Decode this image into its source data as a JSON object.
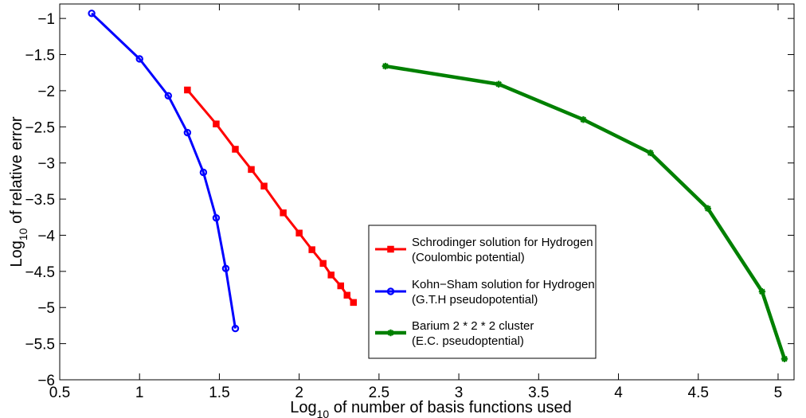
{
  "chart_data": {
    "type": "line",
    "title": "",
    "xlabel": {
      "main": "Log",
      "sub": "10",
      "rest": " of number of basis functions used"
    },
    "ylabel": {
      "main": "Log",
      "sub": "10",
      "rest": " of relative error"
    },
    "xlim": [
      0.5,
      5.1
    ],
    "ylim": [
      -6,
      -0.8
    ],
    "xticks": [
      0.5,
      1,
      1.5,
      2,
      2.5,
      3,
      3.5,
      4,
      4.5,
      5
    ],
    "xtick_labels": [
      "0.5",
      "1",
      "1.5",
      "2",
      "2.5",
      "3",
      "3.5",
      "4",
      "4.5",
      "5"
    ],
    "yticks": [
      -1,
      -1.5,
      -2,
      -2.5,
      -3,
      -3.5,
      -4,
      -4.5,
      -5,
      -5.5,
      -6
    ],
    "ytick_labels": [
      "−1",
      "−1.5",
      "−2",
      "−2.5",
      "−3",
      "−3.5",
      "−4",
      "−4.5",
      "−5",
      "−5.5",
      "−6"
    ],
    "grid": false,
    "legend_position": "lower-center",
    "series": [
      {
        "name": "Schrodinger solution for Hydrogen",
        "subtitle": "(Coulombic potential)",
        "color": "#ff0000",
        "marker": "square",
        "x": [
          1.3,
          1.48,
          1.6,
          1.7,
          1.78,
          1.9,
          2.0,
          2.08,
          2.15,
          2.2,
          2.26,
          2.3,
          2.34
        ],
        "y": [
          -1.99,
          -2.46,
          -2.81,
          -3.09,
          -3.32,
          -3.69,
          -3.97,
          -4.2,
          -4.39,
          -4.55,
          -4.7,
          -4.83,
          -4.93
        ]
      },
      {
        "name": "Kohn−Sham solution for Hydrogen",
        "subtitle": "(G.T.H pseudopotential)",
        "color": "#0000ff",
        "marker": "circle",
        "x": [
          0.7,
          1.0,
          1.18,
          1.3,
          1.4,
          1.48,
          1.54,
          1.6
        ],
        "y": [
          -0.93,
          -1.56,
          -2.07,
          -2.58,
          -3.13,
          -3.76,
          -4.46,
          -5.29
        ]
      },
      {
        "name": "Barium 2 * 2 * 2 cluster",
        "subtitle": "(E.C. pseudoptential)",
        "color": "#008000",
        "marker": "star",
        "x": [
          2.54,
          3.25,
          3.78,
          4.2,
          4.56,
          4.9,
          5.04
        ],
        "y": [
          -1.66,
          -1.91,
          -2.4,
          -2.86,
          -3.63,
          -4.78,
          -5.71
        ]
      }
    ]
  }
}
